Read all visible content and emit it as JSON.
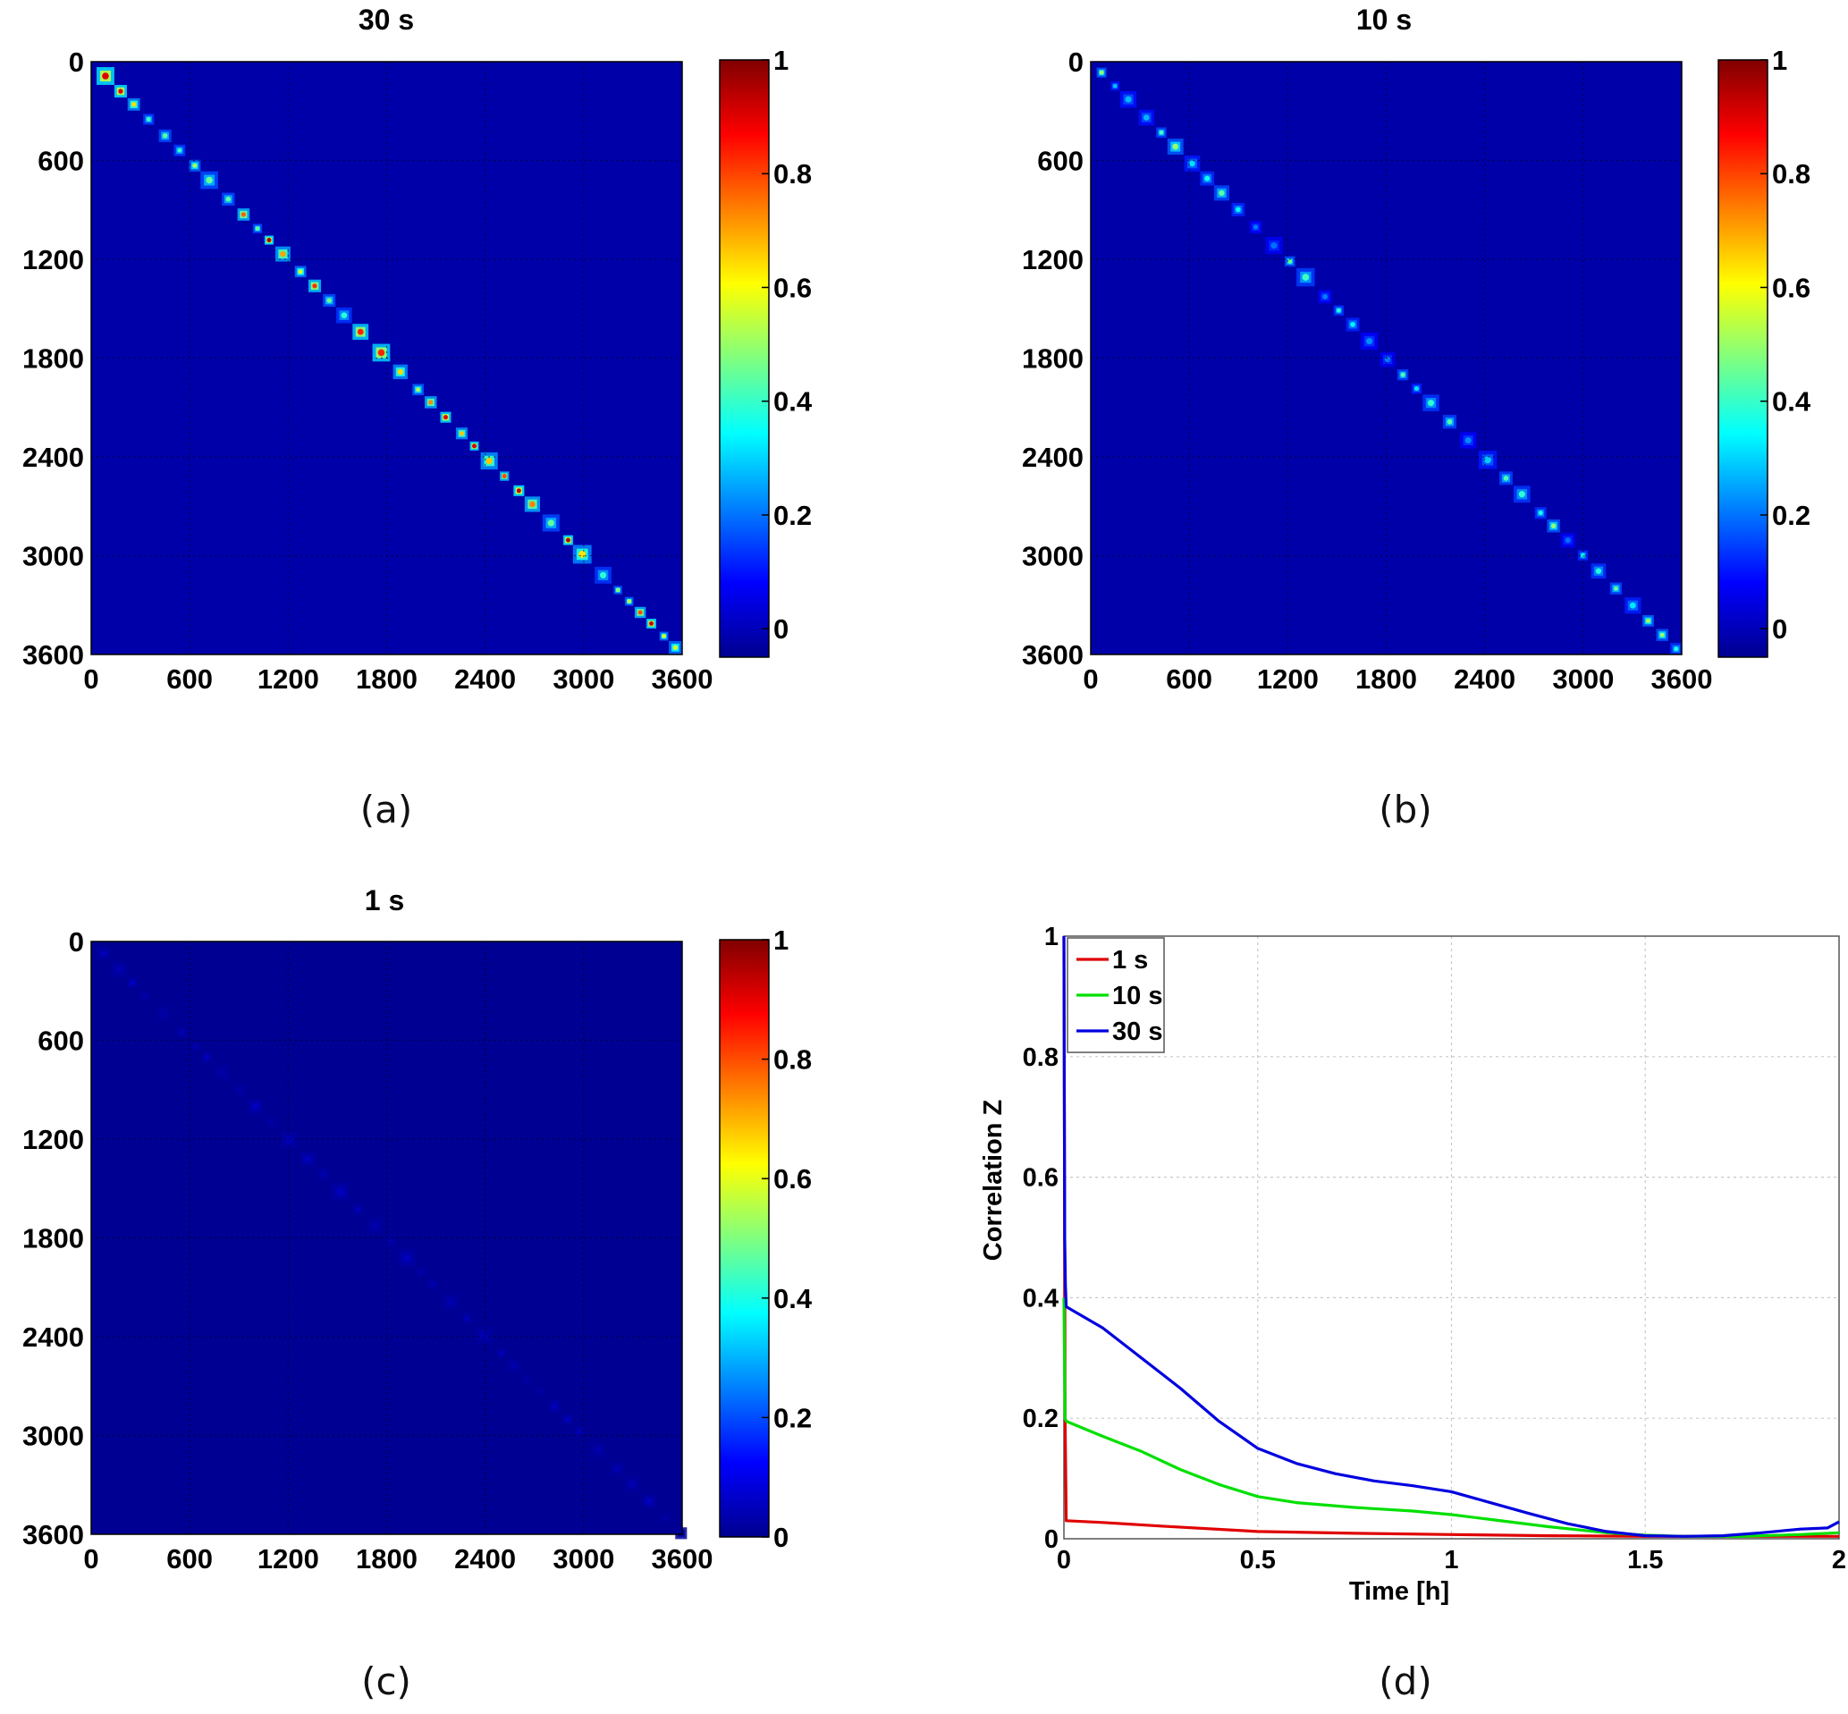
{
  "colors": {
    "jet": [
      "#00008f",
      "#0000ff",
      "#00ffff",
      "#ffff00",
      "#ff0000",
      "#800000"
    ],
    "series_1s": "#e00000",
    "series_10s": "#00e000",
    "series_30s": "#0000e0",
    "grid": "#c8c8c8",
    "axis": "#000000"
  },
  "chart_data": [
    {
      "panel": "a",
      "type": "heatmap",
      "title": "30 s",
      "caption": "(a)",
      "x_ticks": [
        "0",
        "600",
        "1200",
        "1800",
        "2400",
        "3000",
        "3600"
      ],
      "y_ticks": [
        "0",
        "600",
        "1200",
        "1800",
        "2400",
        "3000",
        "3600"
      ],
      "xlim": [
        0,
        3600
      ],
      "ylim": [
        0,
        3600
      ],
      "grid": true,
      "colorbar": {
        "range": [
          -0.05,
          1
        ],
        "ticks": [
          "0",
          "0.2",
          "0.4",
          "0.6",
          "0.8",
          "1"
        ]
      },
      "diagonal_peak": 0.95,
      "background_value": -0.02
    },
    {
      "panel": "b",
      "type": "heatmap",
      "title": "10 s",
      "caption": "(b)",
      "x_ticks": [
        "0",
        "600",
        "1200",
        "1800",
        "2400",
        "3000",
        "3600"
      ],
      "y_ticks": [
        "0",
        "600",
        "1200",
        "1800",
        "2400",
        "3000",
        "3600"
      ],
      "xlim": [
        0,
        3600
      ],
      "ylim": [
        0,
        3600
      ],
      "grid": true,
      "colorbar": {
        "range": [
          -0.05,
          1
        ],
        "ticks": [
          "0",
          "0.2",
          "0.4",
          "0.6",
          "0.8",
          "1"
        ]
      },
      "diagonal_peak": 0.55,
      "background_value": -0.02
    },
    {
      "panel": "c",
      "type": "heatmap",
      "title": "1 s",
      "caption": "(c)",
      "x_ticks": [
        "0",
        "600",
        "1200",
        "1800",
        "2400",
        "3000",
        "3600"
      ],
      "y_ticks": [
        "0",
        "600",
        "1200",
        "1800",
        "2400",
        "3000",
        "3600"
      ],
      "xlim": [
        0,
        3600
      ],
      "ylim": [
        0,
        3600
      ],
      "grid": true,
      "colorbar": {
        "range": [
          0,
          1
        ],
        "ticks": [
          "0",
          "0.2",
          "0.4",
          "0.6",
          "0.8",
          "1"
        ]
      },
      "diagonal_peak": 0.06,
      "background_value": 0.005
    },
    {
      "panel": "d",
      "type": "line",
      "caption": "(d)",
      "xlabel": "Time [h]",
      "ylabel": "Correlation Z",
      "xlim": [
        0,
        2
      ],
      "ylim": [
        0,
        1
      ],
      "x_ticks": [
        "0",
        "0.5",
        "1",
        "1.5",
        "2"
      ],
      "y_ticks": [
        "0",
        "0.2",
        "0.4",
        "0.6",
        "0.8",
        "1"
      ],
      "grid": true,
      "legend_position": "top-left",
      "series": [
        {
          "name": "1 s",
          "color_key": "series_1s",
          "x": [
            0,
            0.003,
            0.006,
            0.1,
            0.25,
            0.5,
            0.75,
            1.0,
            1.25,
            1.5,
            1.75,
            2.0
          ],
          "y": [
            1.0,
            0.2,
            0.03,
            0.027,
            0.021,
            0.012,
            0.009,
            0.007,
            0.005,
            0.004,
            0.004,
            0.004
          ]
        },
        {
          "name": "10 s",
          "color_key": "series_10s",
          "x": [
            0,
            0.003,
            0.006,
            0.1,
            0.2,
            0.3,
            0.4,
            0.5,
            0.6,
            0.75,
            0.9,
            1.0,
            1.1,
            1.25,
            1.4,
            1.5,
            1.6,
            1.75,
            1.9,
            2.0
          ],
          "y": [
            0.4,
            0.2,
            0.195,
            0.17,
            0.145,
            0.115,
            0.09,
            0.07,
            0.06,
            0.052,
            0.046,
            0.04,
            0.032,
            0.02,
            0.01,
            0.006,
            0.004,
            0.004,
            0.007,
            0.01
          ]
        },
        {
          "name": "30 s",
          "color_key": "series_30s",
          "x": [
            0,
            0.002,
            0.004,
            0.006,
            0.1,
            0.2,
            0.3,
            0.4,
            0.5,
            0.6,
            0.7,
            0.8,
            0.9,
            1.0,
            1.1,
            1.2,
            1.3,
            1.4,
            1.5,
            1.6,
            1.7,
            1.8,
            1.9,
            1.97,
            2.0
          ],
          "y": [
            1.0,
            0.5,
            0.42,
            0.385,
            0.35,
            0.3,
            0.25,
            0.195,
            0.15,
            0.125,
            0.108,
            0.096,
            0.088,
            0.078,
            0.06,
            0.042,
            0.025,
            0.012,
            0.005,
            0.004,
            0.005,
            0.01,
            0.016,
            0.018,
            0.028
          ]
        }
      ]
    }
  ]
}
